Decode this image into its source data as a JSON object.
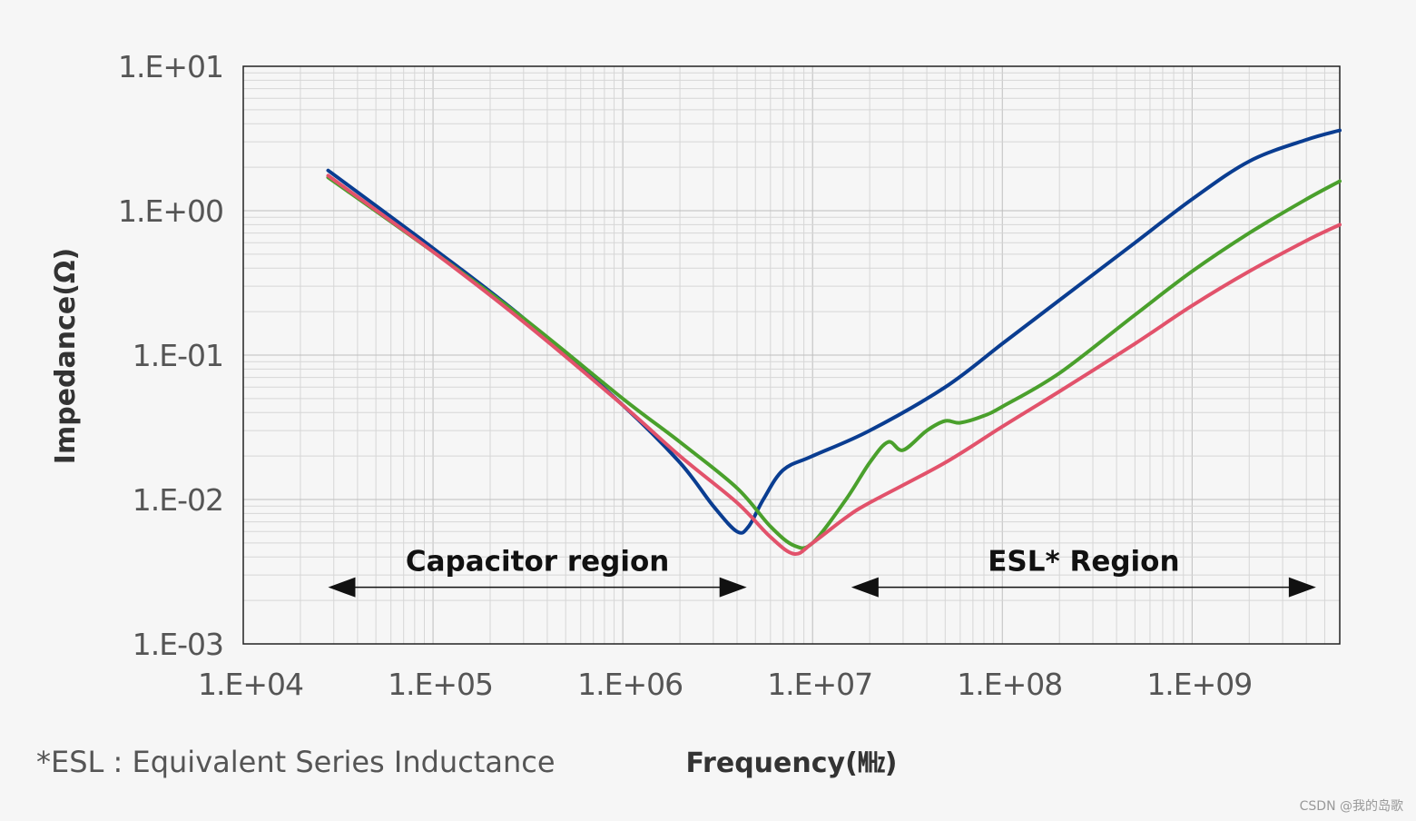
{
  "chart_data": {
    "type": "line",
    "xscale": "log",
    "yscale": "log",
    "xlim": [
      10000,
      6000000000
    ],
    "ylim": [
      0.001,
      10
    ],
    "grid": true,
    "xlabel": "Frequency(㎒)",
    "ylabel": "Impedance(Ω)",
    "x_ticks": [
      "1.E+04",
      "1.E+05",
      "1.E+06",
      "1.E+07",
      "1.E+08",
      "1.E+09"
    ],
    "y_ticks": [
      "1.E-03",
      "1.E-02",
      "1.E-01",
      "1.E+00",
      "1.E+01"
    ],
    "series": [
      {
        "color": "#0a3d91",
        "x": [
          28000,
          100000,
          300000,
          1000000,
          2000000,
          3000000,
          4000000,
          4600000,
          5500000,
          7000000,
          10000000,
          20000000,
          50000000,
          100000000,
          200000000,
          500000000,
          1000000000,
          2000000000,
          4000000000,
          6000000000
        ],
        "y": [
          1.9,
          0.55,
          0.18,
          0.045,
          0.018,
          0.009,
          0.006,
          0.0065,
          0.01,
          0.016,
          0.02,
          0.03,
          0.06,
          0.12,
          0.24,
          0.6,
          1.2,
          2.2,
          3.1,
          3.6
        ]
      },
      {
        "color": "#4aa02c",
        "x": [
          28000,
          100000,
          300000,
          1000000,
          2000000,
          4000000,
          6000000,
          8000000,
          10000000,
          15000000,
          20000000,
          25000000,
          30000000,
          40000000,
          50000000,
          60000000,
          80000000,
          100000000,
          200000000,
          500000000,
          1000000000,
          2000000000,
          4000000000,
          6000000000
        ],
        "y": [
          1.7,
          0.52,
          0.18,
          0.05,
          0.025,
          0.012,
          0.0065,
          0.0048,
          0.005,
          0.01,
          0.018,
          0.025,
          0.022,
          0.03,
          0.035,
          0.034,
          0.038,
          0.044,
          0.075,
          0.19,
          0.38,
          0.7,
          1.2,
          1.6
        ]
      },
      {
        "color": "#e2526b",
        "x": [
          28000,
          100000,
          300000,
          1000000,
          2000000,
          4000000,
          6000000,
          8000000,
          10000000,
          15000000,
          20000000,
          50000000,
          100000000,
          200000000,
          500000000,
          1000000000,
          2000000000,
          4000000000,
          6000000000
        ],
        "y": [
          1.75,
          0.52,
          0.17,
          0.045,
          0.02,
          0.0095,
          0.0055,
          0.0042,
          0.005,
          0.0075,
          0.0095,
          0.018,
          0.032,
          0.056,
          0.12,
          0.22,
          0.38,
          0.62,
          0.8
        ]
      }
    ],
    "annotations": [
      {
        "text": "Capacitor region",
        "x_from": 28000,
        "x_to": 4500000,
        "y": 0.0032
      },
      {
        "text": "ESL* Region",
        "x_from": 16000000,
        "x_to": 4500000000,
        "y": 0.0032
      }
    ]
  },
  "footnote": "*ESL : Equivalent Series Inductance",
  "watermark": "CSDN @我的岛歌"
}
